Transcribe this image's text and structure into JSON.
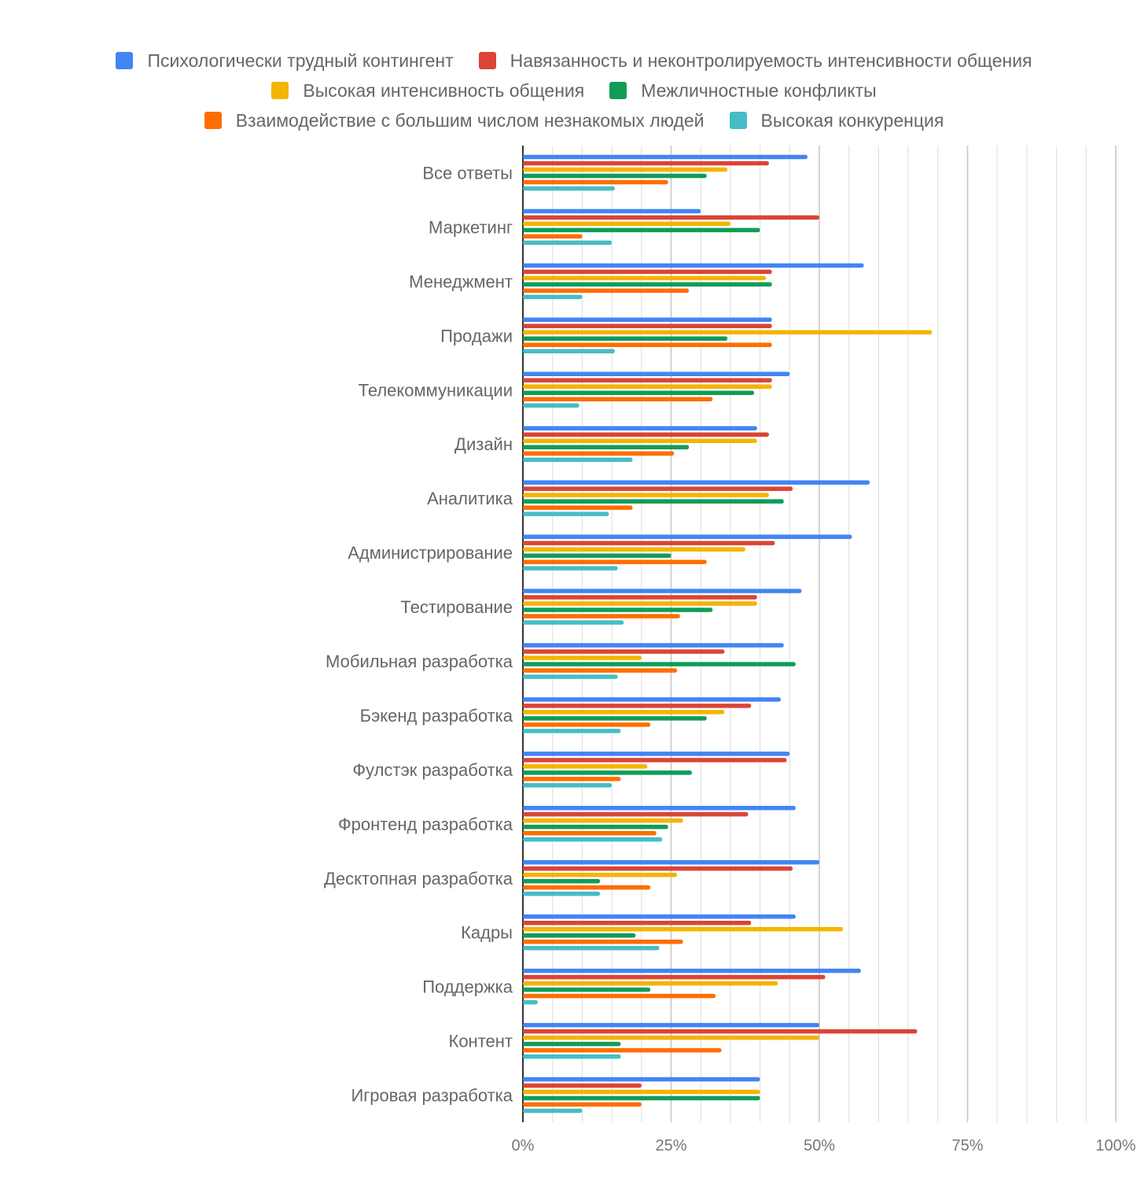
{
  "chart_data": {
    "type": "bar",
    "orientation": "horizontal",
    "legend_position": "top",
    "grid": true,
    "xlim": [
      0,
      100
    ],
    "x_ticks": [
      "0%",
      "25%",
      "50%",
      "75%",
      "100%"
    ],
    "categories": [
      "Все ответы",
      "Маркетинг",
      "Менеджмент",
      "Продажи",
      "Телекоммуникации",
      "Дизайн",
      "Аналитика",
      "Администрирование",
      "Тестирование",
      "Мобильная разработка",
      "Бэкенд разработка",
      "Фулстэк разработка",
      "Фронтенд разработка",
      "Десктопная разработка",
      "Кадры",
      "Поддержка",
      "Контент",
      "Игровая разработка"
    ],
    "series": [
      {
        "name": "Психологически трудный контингент",
        "color": "#4285f4",
        "values": [
          48,
          30,
          57.5,
          42,
          45,
          39.5,
          58.5,
          55.5,
          47,
          44,
          43.5,
          45,
          46,
          50,
          46,
          57,
          50,
          40
        ]
      },
      {
        "name": "Навязанность и неконтролируемость интенсивности общения",
        "color": "#db4437",
        "values": [
          41.5,
          50,
          42,
          42,
          42,
          41.5,
          45.5,
          42.5,
          39.5,
          34,
          38.5,
          44.5,
          38,
          45.5,
          38.5,
          51,
          66.5,
          20
        ]
      },
      {
        "name": "Высокая интенсивность общения",
        "color": "#f4b400",
        "values": [
          34.5,
          35,
          41,
          69,
          42,
          39.5,
          41.5,
          37.5,
          39.5,
          20,
          34,
          21,
          27,
          26,
          54,
          43,
          50,
          40
        ]
      },
      {
        "name": "Межличностные конфликты",
        "color": "#0f9d58",
        "values": [
          31,
          40,
          42,
          34.5,
          39,
          28,
          44,
          25,
          32,
          46,
          31,
          28.5,
          24.5,
          13,
          19,
          21.5,
          16.5,
          40
        ]
      },
      {
        "name": "Взаимодействие с большим числом незнакомых людей",
        "color": "#ff6d00",
        "values": [
          24.5,
          10,
          28,
          42,
          32,
          25.5,
          18.5,
          31,
          26.5,
          26,
          21.5,
          16.5,
          22.5,
          21.5,
          27,
          32.5,
          33.5,
          20
        ]
      },
      {
        "name": "Высокая конкуренция",
        "color": "#46bdc6",
        "values": [
          15.5,
          15,
          10,
          15.5,
          9.5,
          18.5,
          14.5,
          16,
          17,
          16,
          16.5,
          15,
          23.5,
          13,
          23,
          2.5,
          16.5,
          10
        ]
      }
    ]
  }
}
